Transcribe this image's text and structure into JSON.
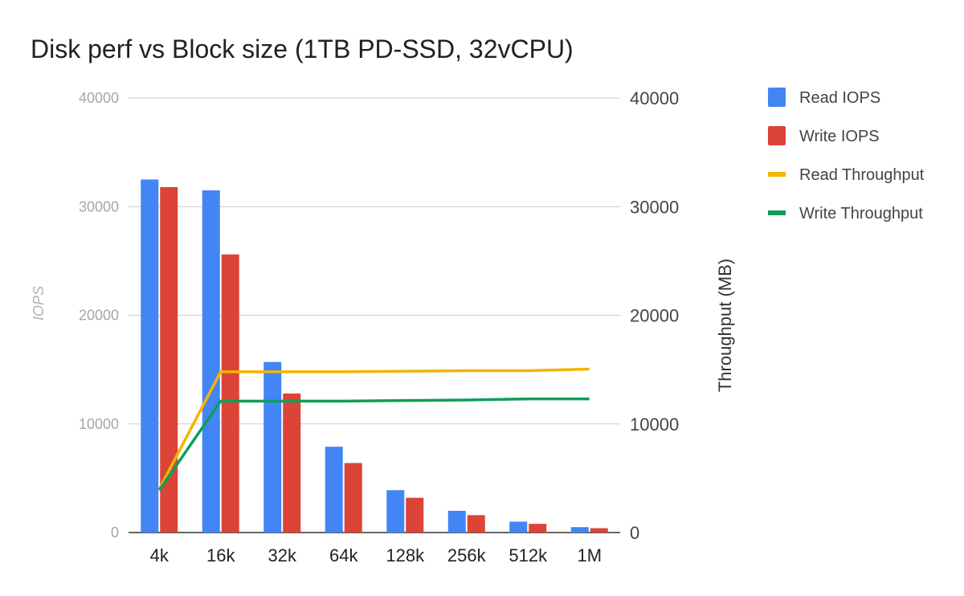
{
  "chart_data": {
    "type": "bar",
    "title": "Disk perf vs Block size (1TB PD-SSD, 32vCPU)",
    "xlabel": "",
    "ylabel": "IOPS",
    "y2label": "Throughput (MB)",
    "ylim": [
      0,
      40000
    ],
    "y2lim": [
      0,
      40000
    ],
    "yticks": [
      "0",
      "10000",
      "20000",
      "30000",
      "40000"
    ],
    "y2ticks": [
      "0",
      "10000",
      "20000",
      "30000",
      "40000"
    ],
    "categories": [
      "4k",
      "16k",
      "32k",
      "64k",
      "128k",
      "256k",
      "512k",
      "1M"
    ],
    "grid": true,
    "legend_position": "right",
    "series": [
      {
        "name": "Read IOPS",
        "kind": "bar",
        "axis": "left",
        "color": "#4285f4",
        "values": [
          32500,
          31500,
          15700,
          7900,
          3900,
          2000,
          1000,
          500
        ]
      },
      {
        "name": "Write IOPS",
        "kind": "bar",
        "axis": "left",
        "color": "#db4437",
        "values": [
          31800,
          25600,
          12800,
          6400,
          3200,
          1600,
          800,
          400
        ]
      },
      {
        "name": "Read Throughput",
        "kind": "line",
        "axis": "right",
        "color": "#f4b400",
        "values": [
          4000,
          14800,
          14800,
          14800,
          14850,
          14900,
          14900,
          15050
        ]
      },
      {
        "name": "Write Throughput",
        "kind": "line",
        "axis": "right",
        "color": "#0f9d58",
        "values": [
          3900,
          12100,
          12100,
          12100,
          12150,
          12200,
          12300,
          12300
        ]
      }
    ]
  }
}
